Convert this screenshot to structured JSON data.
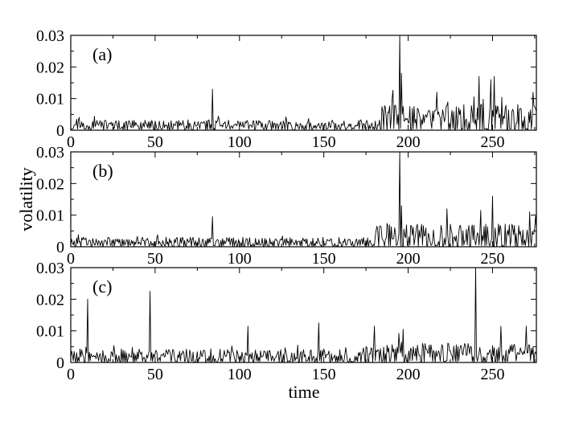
{
  "chart_data": {
    "type": "line",
    "xlabel": "time",
    "ylabel": "volatility",
    "xlim": [
      0,
      276
    ],
    "ylim": [
      0,
      0.03
    ],
    "x_ticks": [
      0,
      50,
      100,
      150,
      200,
      250
    ],
    "x_tick_labels": [
      "0",
      "50",
      "100",
      "150",
      "200",
      "250"
    ],
    "y_ticks": [
      0,
      0.01,
      0.02,
      0.03
    ],
    "y_tick_labels": [
      "0",
      "0.01",
      "0.02",
      "0.03"
    ],
    "grid": false,
    "panels": [
      {
        "label": "(a)",
        "base": 0.0018,
        "amp": 0.0016,
        "late_base": 0.0045,
        "late_amp": 0.004,
        "late_start": 183,
        "seed": 11,
        "spikes": [
          {
            "x": 84,
            "y": 0.013
          },
          {
            "x": 195,
            "y": 0.03
          },
          {
            "x": 196,
            "y": 0.018
          },
          {
            "x": 217,
            "y": 0.012
          },
          {
            "x": 242,
            "y": 0.017
          },
          {
            "x": 249,
            "y": 0.016
          },
          {
            "x": 251,
            "y": 0.017
          },
          {
            "x": 274,
            "y": 0.012
          }
        ]
      },
      {
        "label": "(b)",
        "base": 0.0018,
        "amp": 0.0015,
        "late_base": 0.004,
        "late_amp": 0.0035,
        "late_start": 180,
        "seed": 29,
        "spikes": [
          {
            "x": 84,
            "y": 0.0095
          },
          {
            "x": 195,
            "y": 0.03
          },
          {
            "x": 196,
            "y": 0.013
          },
          {
            "x": 223,
            "y": 0.012
          },
          {
            "x": 243,
            "y": 0.0115
          },
          {
            "x": 250,
            "y": 0.016
          },
          {
            "x": 272,
            "y": 0.011
          }
        ]
      },
      {
        "label": "(c)",
        "base": 0.0028,
        "amp": 0.002,
        "late_base": 0.004,
        "late_amp": 0.0028,
        "late_start": 170,
        "seed": 47,
        "spikes": [
          {
            "x": 10,
            "y": 0.02
          },
          {
            "x": 47,
            "y": 0.0225
          },
          {
            "x": 105,
            "y": 0.0115
          },
          {
            "x": 147,
            "y": 0.0125
          },
          {
            "x": 180,
            "y": 0.0115
          },
          {
            "x": 197,
            "y": 0.0105
          },
          {
            "x": 240,
            "y": 0.03
          },
          {
            "x": 255,
            "y": 0.0115
          },
          {
            "x": 270,
            "y": 0.0115
          }
        ]
      }
    ]
  }
}
